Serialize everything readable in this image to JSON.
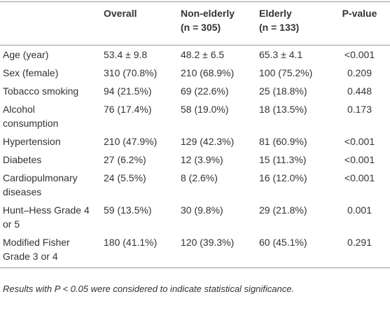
{
  "table": {
    "header": [
      {
        "label": "Overall"
      },
      {
        "label": "Non-elderly",
        "sub": "(n = 305)"
      },
      {
        "label": "Elderly",
        "sub": "(n = 133)"
      },
      {
        "label": "P-value"
      }
    ],
    "rows": [
      [
        "Age (year)",
        "53.4 ± 9.8",
        "48.2 ± 6.5",
        "65.3 ± 4.1",
        "<0.001"
      ],
      [
        "Sex (female)",
        "310 (70.8%)",
        "210 (68.9%)",
        "100 (75.2%)",
        "0.209"
      ],
      [
        "Tobacco smoking",
        "94 (21.5%)",
        "69 (22.6%)",
        "25 (18.8%)",
        "0.448"
      ],
      [
        "Alcohol consumption",
        "76 (17.4%)",
        "58 (19.0%)",
        "18 (13.5%)",
        "0.173"
      ],
      [
        "Hypertension",
        "210 (47.9%)",
        "129 (42.3%)",
        "81 (60.9%)",
        "<0.001"
      ],
      [
        "Diabetes",
        "27 (6.2%)",
        "12 (3.9%)",
        "15 (11.3%)",
        "<0.001"
      ],
      [
        "Cardiopulmonary diseases",
        "24 (5.5%)",
        "8 (2.6%)",
        "16 (12.0%)",
        "<0.001"
      ],
      [
        "Hunt–Hess Grade 4 or 5",
        "59 (13.5%)",
        "30 (9.8%)",
        "29 (21.8%)",
        "0.001"
      ],
      [
        "Modified Fisher Grade 3 or 4",
        "180 (41.1%)",
        "120 (39.3%)",
        "60 (45.1%)",
        "0.291"
      ]
    ],
    "footnote": "Results with P < 0.05 were considered to indicate statistical significance."
  }
}
